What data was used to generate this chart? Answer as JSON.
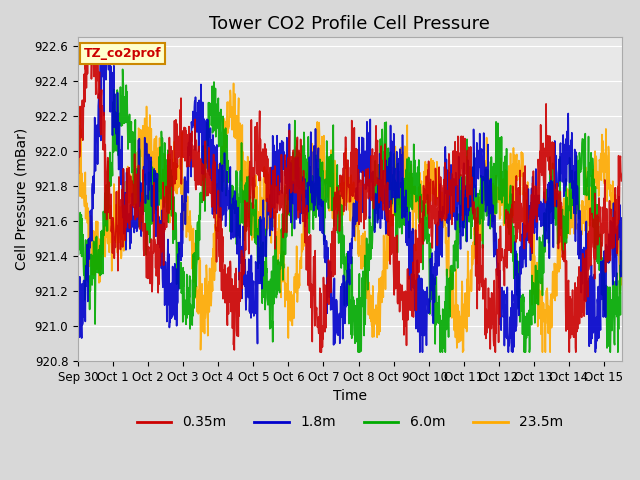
{
  "title": "Tower CO2 Profile Cell Pressure",
  "ylabel": "Cell Pressure (mBar)",
  "xlabel": "Time",
  "annotation_text": "TZ_co2prof",
  "ylim": [
    920.8,
    922.65
  ],
  "xlim_days": [
    0,
    15.5
  ],
  "series_labels": [
    "0.35m",
    "1.8m",
    "6.0m",
    "23.5m"
  ],
  "series_colors": [
    "#cc0000",
    "#0000cc",
    "#00aa00",
    "#ffaa00"
  ],
  "x_tick_labels": [
    "Sep 30",
    "Oct 1",
    "Oct 2",
    "Oct 3",
    "Oct 4",
    "Oct 5",
    "Oct 6",
    "Oct 7",
    "Oct 8",
    "Oct 9",
    "Oct 10",
    "Oct 11",
    "Oct 12",
    "Oct 13",
    "Oct 14",
    "Oct 15"
  ],
  "background_color": "#d8d8d8",
  "plot_bg_color": "#e8e8e8",
  "annotation_bg": "#ffffcc",
  "annotation_border": "#cc8800",
  "annotation_text_color": "#cc0000",
  "title_fontsize": 13,
  "axis_label_fontsize": 10,
  "tick_fontsize": 8.5,
  "legend_fontsize": 10,
  "linewidth": 1.2,
  "n_points": 1500,
  "base_pressure": 921.55,
  "seed": 42
}
